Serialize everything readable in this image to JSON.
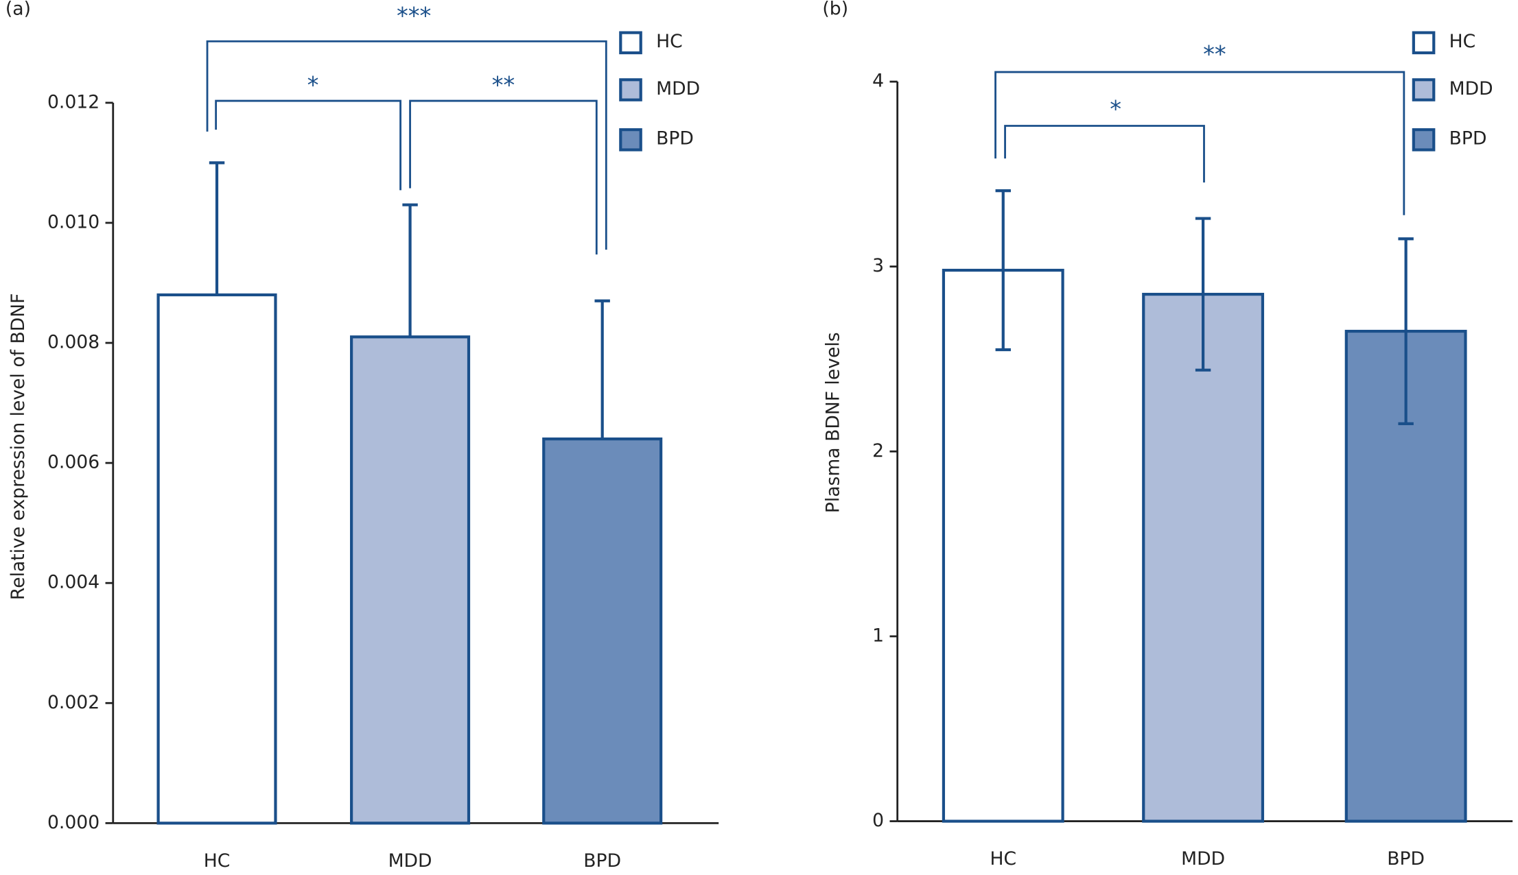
{
  "chart_data": [
    {
      "type": "bar",
      "panel": "(a)",
      "y_label": "Relative expression level of BDNF",
      "categories": [
        "HC",
        "MDD",
        "BPD"
      ],
      "values": [
        0.0088,
        0.0081,
        0.0064
      ],
      "errors": [
        0.0022,
        0.0022,
        0.0023
      ],
      "error_bars": "upper",
      "colors": [
        "#ffffff",
        "#aebcd9",
        "#6b8cba"
      ],
      "edge_color": "#1a4f8a",
      "ylim": [
        0,
        0.012
      ],
      "yticks": [
        {
          "value": 0,
          "label": "0.000"
        },
        {
          "value": 0.002,
          "label": "0.002"
        },
        {
          "value": 0.004,
          "label": "0.004"
        },
        {
          "value": 0.006,
          "label": "0.006"
        },
        {
          "value": 0.008,
          "label": "0.008"
        },
        {
          "value": 0.01,
          "label": "0.010"
        },
        {
          "value": 0.012,
          "label": "0.012"
        }
      ],
      "significance": [
        "*",
        "**",
        "***"
      ]
    },
    {
      "type": "bar",
      "panel": "(b)",
      "y_label": "Plasma BDNF levels",
      "categories": [
        "HC",
        "MDD",
        "BPD"
      ],
      "values": [
        2.98,
        2.85,
        2.65
      ],
      "errors": [
        0.43,
        0.41,
        0.5
      ],
      "error_bars": "both",
      "colors": [
        "#ffffff",
        "#aebcd9",
        "#6b8cba"
      ],
      "edge_color": "#1a4f8a",
      "ylim": [
        0,
        4
      ],
      "yticks": [
        0,
        1,
        2,
        3,
        4
      ],
      "significance": [
        "*",
        "**"
      ]
    }
  ]
}
